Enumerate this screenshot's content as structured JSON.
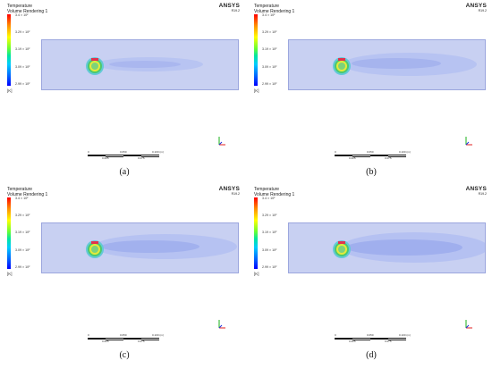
{
  "panels": [
    {
      "id": "a",
      "caption": "(a)"
    },
    {
      "id": "b",
      "caption": "(b)"
    },
    {
      "id": "c",
      "caption": "(c)"
    },
    {
      "id": "d",
      "caption": "(d)"
    }
  ],
  "legend": {
    "title": "Temperature",
    "subtitle": "Volume Rendering 1",
    "unit": "[K]"
  },
  "brand": {
    "name": "ANSYS",
    "version": "R19.2"
  },
  "ticks": {
    "a": [
      "3.4 × 10²",
      "3.29 × 10²",
      "3.19 × 10²",
      "3.09 × 10²",
      "2.99 × 10²"
    ],
    "b": [
      "3.4 × 10²",
      "3.29 × 10²",
      "3.19 × 10²",
      "3.09 × 10²",
      "2.99 × 10²"
    ],
    "c": [
      "3.4 × 10²",
      "3.29 × 10²",
      "3.19 × 10²",
      "3.09 × 10²",
      "2.99 × 10²"
    ],
    "d": [
      "3.4 × 10²",
      "3.29 × 10²",
      "3.19 × 10²",
      "3.09 × 10²",
      "2.99 × 10²"
    ]
  },
  "scale_labels": {
    "top": [
      "0",
      "0.050",
      "0.100 (m)"
    ],
    "bottom": [
      "0.025",
      "0.075"
    ]
  },
  "colors": {
    "domain": "#c8d0f2",
    "wake": "#aebaf0",
    "hot": "#e2324e",
    "warm": "#e5ea3a",
    "mid": "#4bc96e"
  }
}
